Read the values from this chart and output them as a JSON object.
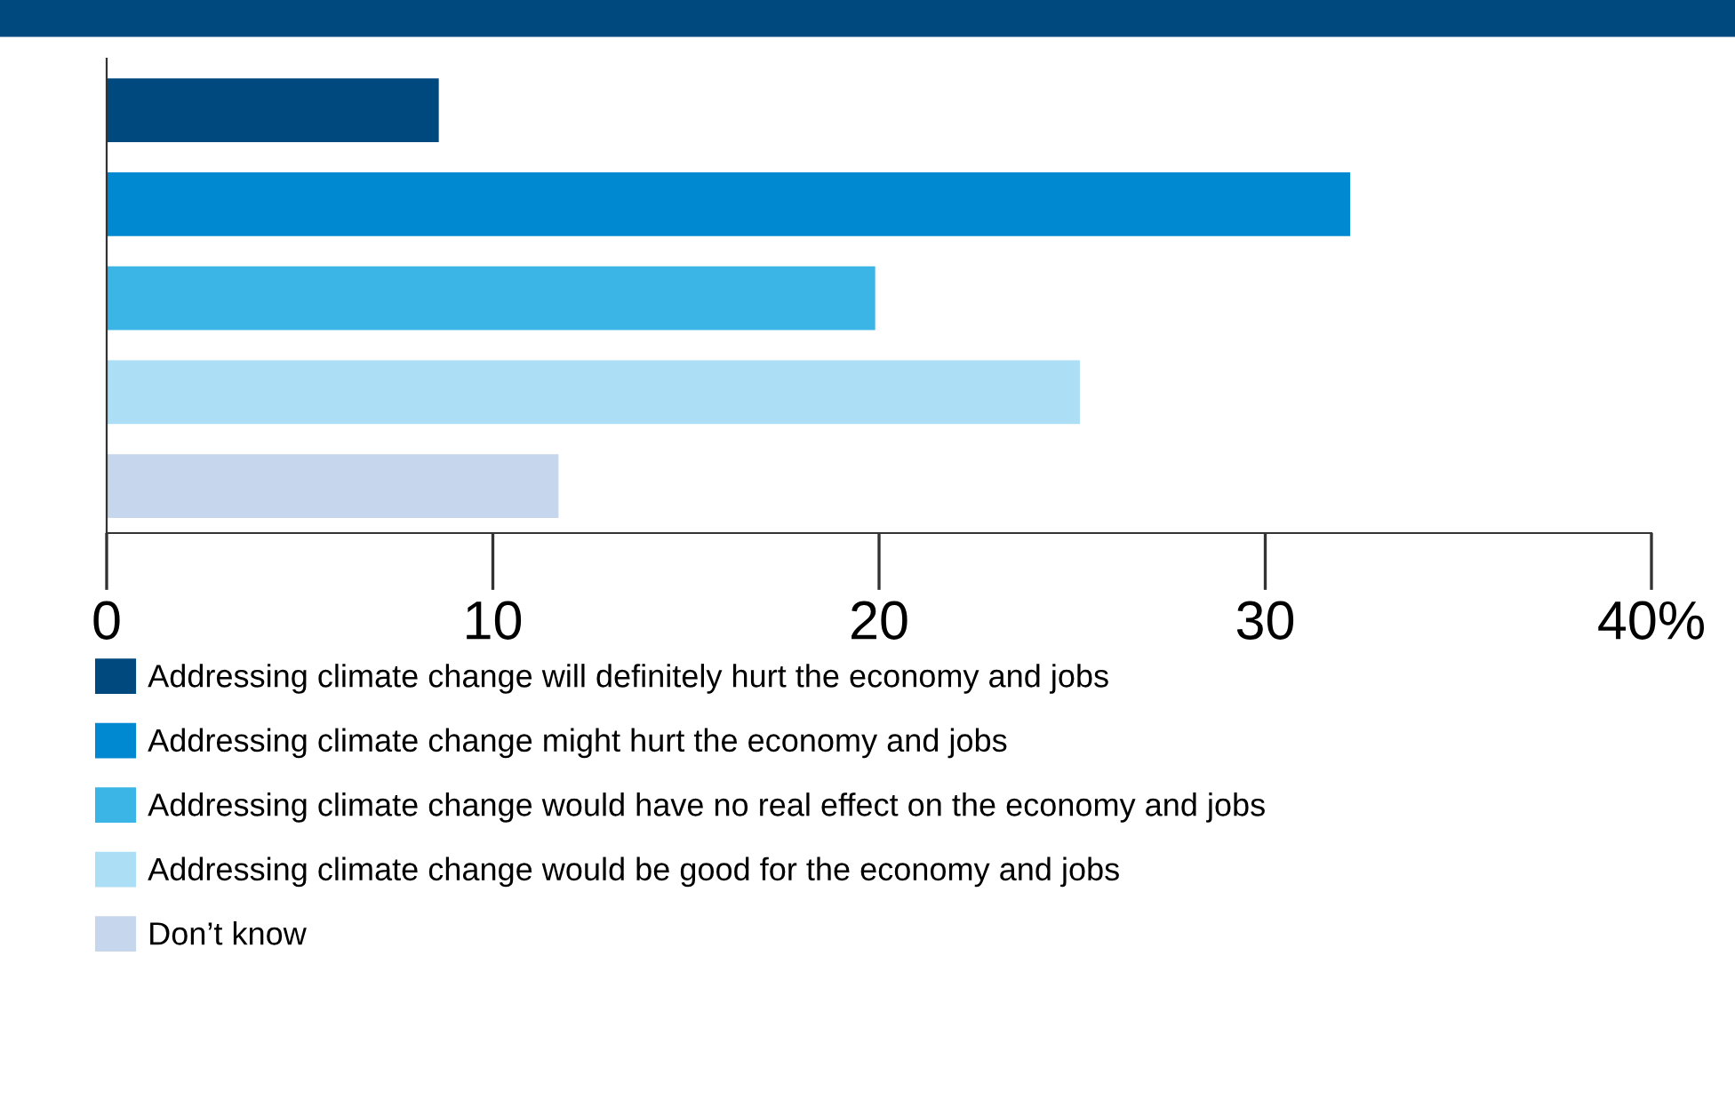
{
  "chart_data": {
    "type": "bar",
    "orientation": "horizontal",
    "categories": [
      null,
      null,
      null,
      null,
      null
    ],
    "series": [
      {
        "name": "Addressing climate change will definitely hurt the economy and jobs",
        "color": "#00497f",
        "values": [
          8.6,
          null,
          null,
          null,
          null
        ]
      },
      {
        "name": "Addressing climate change might hurt the economy and jobs",
        "color": "#0089d1",
        "values": [
          null,
          32.2,
          null,
          null,
          null
        ]
      },
      {
        "name": "Addressing climate change would have no real effect on the economy and jobs",
        "color": "#3bb4e6",
        "values": [
          null,
          null,
          19.9,
          null,
          null
        ]
      },
      {
        "name": "Addressing climate change would be good for the economy and jobs",
        "color": "#acdef5",
        "values": [
          null,
          null,
          null,
          25.2,
          null
        ]
      },
      {
        "name": "Don’t know",
        "color": "#c6d6ec",
        "values": [
          null,
          null,
          null,
          null,
          11.7
        ]
      }
    ],
    "xlim": [
      0,
      40
    ],
    "xticks": [
      0,
      10,
      20,
      30,
      {
        "value": 40,
        "label": "40%"
      }
    ],
    "grid": false,
    "legend": "bottom"
  }
}
